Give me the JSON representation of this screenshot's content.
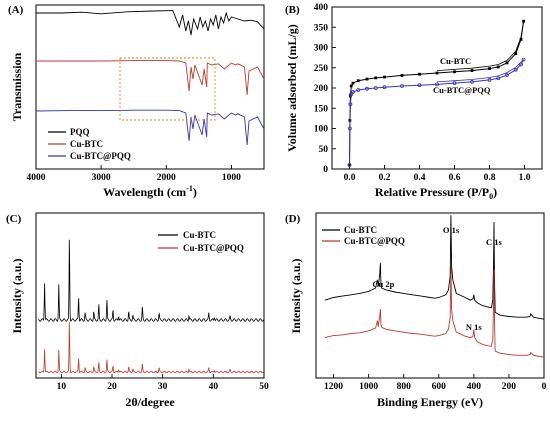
{
  "chart_data": [
    {
      "panel": "(A)",
      "type": "line",
      "xlabel": "Wavelength (cm-1)",
      "ylabel": "Transmission",
      "xlim": [
        4000,
        500
      ],
      "xticks": [
        "4000",
        "3000",
        "2000",
        "1000"
      ],
      "series": [
        {
          "name": "PQQ",
          "color": "#000000",
          "offset": 3.0,
          "x": [
            4000,
            3600,
            3300,
            3000,
            2600,
            2200,
            1900,
            1800,
            1750,
            1700,
            1660,
            1620,
            1580,
            1520,
            1480,
            1440,
            1400,
            1360,
            1320,
            1280,
            1240,
            1200,
            1160,
            1120,
            1080,
            1040,
            1000,
            900,
            800,
            700,
            600,
            500
          ],
          "y": [
            0.9,
            0.9,
            0.92,
            0.88,
            0.93,
            0.95,
            0.96,
            0.55,
            0.85,
            0.45,
            0.7,
            0.35,
            0.75,
            0.5,
            0.8,
            0.55,
            0.7,
            0.45,
            0.75,
            0.6,
            0.85,
            0.5,
            0.8,
            0.65,
            0.9,
            0.7,
            0.8,
            0.75,
            0.7,
            0.72,
            0.68,
            0.5
          ]
        },
        {
          "name": "Cu-BTC",
          "color": "#c0392b",
          "offset": 1.75,
          "x": [
            4000,
            3500,
            3000,
            2500,
            2000,
            1800,
            1700,
            1650,
            1620,
            1590,
            1560,
            1450,
            1420,
            1380,
            1370,
            1300,
            1200,
            1110,
            1000,
            940,
            900,
            800,
            760,
            730,
            600,
            500
          ],
          "y": [
            0.95,
            0.95,
            0.95,
            0.96,
            0.96,
            0.95,
            0.9,
            0.2,
            0.8,
            0.5,
            0.85,
            0.35,
            0.75,
            0.3,
            0.9,
            0.85,
            0.88,
            0.75,
            0.9,
            0.85,
            0.88,
            0.8,
            0.1,
            0.7,
            0.8,
            0.5
          ]
        },
        {
          "name": "Cu-BTC@PQQ",
          "color": "#3333cc",
          "offset": 0.5,
          "x": [
            4000,
            3500,
            3000,
            2500,
            2000,
            1800,
            1700,
            1650,
            1620,
            1590,
            1560,
            1450,
            1420,
            1380,
            1370,
            1300,
            1200,
            1110,
            1000,
            940,
            900,
            800,
            760,
            730,
            600,
            500
          ],
          "y": [
            0.95,
            0.96,
            0.96,
            0.97,
            0.97,
            0.96,
            0.9,
            0.2,
            0.8,
            0.5,
            0.85,
            0.35,
            0.75,
            0.3,
            0.9,
            0.85,
            0.88,
            0.75,
            0.9,
            0.85,
            0.88,
            0.8,
            0.1,
            0.7,
            0.8,
            0.5
          ]
        }
      ]
    },
    {
      "panel": "(B)",
      "type": "line",
      "xlabel": "Relative Pressure (P/P0)",
      "ylabel": "Volume adsorbed (mL/g)",
      "xlim": [
        -0.1,
        1.1
      ],
      "ylim": [
        0,
        400
      ],
      "xticks": [
        "0.0",
        "0.2",
        "0.4",
        "0.6",
        "0.8",
        "1.0"
      ],
      "yticks": [
        "0",
        "50",
        "100",
        "150",
        "200",
        "250",
        "300",
        "350",
        "400"
      ],
      "series": [
        {
          "name": "Cu-BTC",
          "color": "#000000",
          "marker": "square",
          "x": [
            0.0,
            0.002,
            0.005,
            0.01,
            0.02,
            0.05,
            0.1,
            0.15,
            0.2,
            0.3,
            0.4,
            0.5,
            0.6,
            0.7,
            0.8,
            0.85,
            0.9,
            0.95,
            0.98,
            0.995
          ],
          "y": [
            10,
            120,
            180,
            205,
            212,
            218,
            222,
            225,
            227,
            231,
            234,
            237,
            240,
            243,
            248,
            252,
            262,
            285,
            320,
            365
          ]
        },
        {
          "name": "Cu-BTC@PQQ",
          "color": "#3333cc",
          "marker": "circle",
          "x": [
            0.0,
            0.002,
            0.005,
            0.01,
            0.02,
            0.05,
            0.1,
            0.15,
            0.2,
            0.3,
            0.4,
            0.5,
            0.6,
            0.7,
            0.8,
            0.85,
            0.9,
            0.95,
            0.98,
            0.995
          ],
          "y": [
            10,
            100,
            160,
            185,
            190,
            195,
            198,
            200,
            202,
            205,
            207,
            209,
            212,
            215,
            220,
            224,
            232,
            245,
            258,
            270
          ]
        }
      ]
    },
    {
      "panel": "(C)",
      "type": "line",
      "xlabel": "2θ/degree",
      "ylabel": "Intensity (a.u.)",
      "xlim": [
        5,
        50
      ],
      "xticks": [
        "10",
        "20",
        "30",
        "40",
        "50"
      ],
      "peaks": [
        {
          "x": 6.7,
          "h": 0.45
        },
        {
          "x": 9.5,
          "h": 0.42
        },
        {
          "x": 11.6,
          "h": 1.0
        },
        {
          "x": 13.4,
          "h": 0.28
        },
        {
          "x": 14.7,
          "h": 0.08
        },
        {
          "x": 16.4,
          "h": 0.1
        },
        {
          "x": 17.4,
          "h": 0.18
        },
        {
          "x": 19.0,
          "h": 0.24
        },
        {
          "x": 20.2,
          "h": 0.12
        },
        {
          "x": 21.3,
          "h": 0.06
        },
        {
          "x": 23.3,
          "h": 0.1
        },
        {
          "x": 24.1,
          "h": 0.06
        },
        {
          "x": 26.0,
          "h": 0.15
        },
        {
          "x": 29.3,
          "h": 0.08
        },
        {
          "x": 35.2,
          "h": 0.06
        },
        {
          "x": 39.1,
          "h": 0.08
        },
        {
          "x": 40.2,
          "h": 0.04
        },
        {
          "x": 43.3,
          "h": 0.04
        }
      ],
      "series": [
        {
          "name": "Cu-BTC",
          "color": "#000000",
          "scale": 1.0
        },
        {
          "name": "Cu-BTC@PQQ",
          "color": "#c0392b",
          "scale": 0.62
        }
      ]
    },
    {
      "panel": "(D)",
      "type": "line",
      "xlabel": "Binding Energy (eV)",
      "ylabel": "Intensity (a.u.)",
      "xlim": [
        1300,
        0
      ],
      "xticks": [
        "1200",
        "1000",
        "800",
        "600",
        "400",
        "200",
        "0"
      ],
      "annotations": [
        {
          "text": "O 1s",
          "x": 531
        },
        {
          "text": "Cu 2p",
          "x": 933
        },
        {
          "text": "N 1s",
          "x": 400
        },
        {
          "text": "C 1s",
          "x": 285
        }
      ],
      "series": [
        {
          "name": "Cu-BTC",
          "color": "#000000",
          "offset": 0.55,
          "x": [
            1250,
            1200,
            1150,
            1100,
            1050,
            1000,
            960,
            950,
            945,
            936,
            933,
            930,
            925,
            900,
            850,
            800,
            750,
            700,
            650,
            620,
            600,
            560,
            545,
            535,
            531,
            527,
            520,
            500,
            450,
            420,
            405,
            400,
            395,
            380,
            350,
            320,
            300,
            292,
            288,
            285,
            282,
            278,
            250,
            200,
            150,
            100,
            80,
            75,
            60,
            40,
            20,
            0
          ],
          "y": [
            0.3,
            0.34,
            0.36,
            0.38,
            0.4,
            0.43,
            0.48,
            0.6,
            0.5,
            0.7,
            0.85,
            0.55,
            0.48,
            0.45,
            0.42,
            0.4,
            0.38,
            0.36,
            0.34,
            0.33,
            0.34,
            0.38,
            0.45,
            0.65,
            1.55,
            0.8,
            0.6,
            0.4,
            0.34,
            0.3,
            0.32,
            0.38,
            0.3,
            0.26,
            0.22,
            0.2,
            0.19,
            0.3,
            0.8,
            1.45,
            0.6,
            0.12,
            0.08,
            0.06,
            0.05,
            0.05,
            0.06,
            0.1,
            0.05,
            0.04,
            0.03,
            0.02
          ]
        },
        {
          "name": "Cu-BTC@PQQ",
          "color": "#c0392b",
          "offset": 0.0,
          "x": [
            1250,
            1200,
            1150,
            1100,
            1050,
            1000,
            960,
            950,
            945,
            936,
            933,
            930,
            925,
            900,
            850,
            800,
            750,
            700,
            650,
            620,
            600,
            560,
            545,
            535,
            531,
            527,
            520,
            500,
            450,
            420,
            405,
            400,
            395,
            380,
            350,
            320,
            300,
            292,
            288,
            285,
            282,
            278,
            250,
            200,
            150,
            100,
            80,
            75,
            60,
            40,
            20,
            0
          ],
          "y": [
            0.3,
            0.33,
            0.34,
            0.36,
            0.37,
            0.4,
            0.44,
            0.55,
            0.46,
            0.62,
            0.72,
            0.5,
            0.45,
            0.42,
            0.4,
            0.38,
            0.36,
            0.35,
            0.33,
            0.32,
            0.33,
            0.36,
            0.42,
            0.6,
            1.35,
            0.72,
            0.55,
            0.38,
            0.32,
            0.3,
            0.32,
            0.42,
            0.3,
            0.24,
            0.2,
            0.18,
            0.17,
            0.28,
            0.75,
            1.3,
            0.55,
            0.1,
            0.07,
            0.05,
            0.04,
            0.04,
            0.05,
            0.08,
            0.04,
            0.03,
            0.02,
            0.01
          ]
        }
      ]
    }
  ],
  "panels": {
    "a": {
      "label": "(A)",
      "xlabel_main": "Wavelength (cm",
      "xlabel_sup": "-1",
      "xlabel_end": ")",
      "ylabel": "Transmission",
      "legend": [
        "PQQ",
        "Cu-BTC",
        "Cu-BTC@PQQ"
      ]
    },
    "b": {
      "label": "(B)",
      "xlabel_main": "Relative Pressure (P/P",
      "xlabel_sub": "0",
      "xlabel_end": ")",
      "ylabel": "Volume adsorbed (mL/g)",
      "ann1": "Cu-BTC",
      "ann2": "Cu-BTC@PQQ"
    },
    "c": {
      "label": "(C)",
      "xlabel": "2θ/degree",
      "ylabel": "Intensity (a.u.)",
      "legend": [
        "Cu-BTC",
        "Cu-BTC@PQQ"
      ]
    },
    "d": {
      "label": "(D)",
      "xlabel": "Binding Energy (eV)",
      "ylabel": "Intensity (a.u.)",
      "legend": [
        "Cu-BTC",
        "Cu-BTC@PQQ"
      ]
    }
  }
}
